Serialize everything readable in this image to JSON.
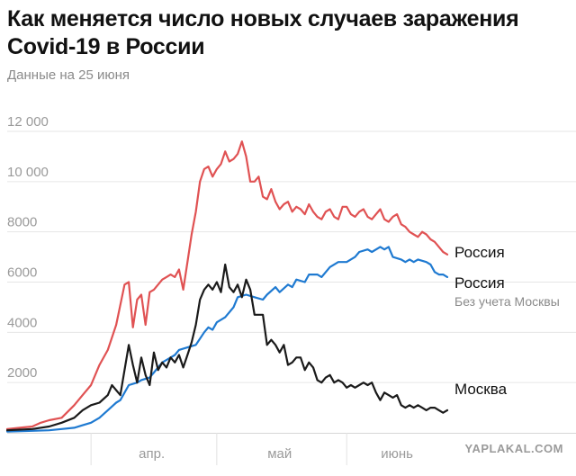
{
  "header": {
    "title": "Как меняется число новых случаев заражения Covid-19 в России",
    "subtitle": "Данные на 25 июня"
  },
  "watermark": "YAPLAKAL.COM",
  "colors": {
    "russia": "#e05253",
    "russia_ex_moscow": "#1f7ad1",
    "moscow": "#1a1a1a",
    "grid": "#e6e6e6",
    "axis_text": "#9a9a9a"
  },
  "chart_data": {
    "type": "line",
    "title": "Как меняется число новых случаев заражения Covid-19 в России",
    "subtitle": "Данные на 25 июня",
    "x_start": "2020-03-12",
    "x_end": "2020-06-25",
    "ylim": [
      0,
      12000
    ],
    "yticks": [
      {
        "value": 2000,
        "label": "2000"
      },
      {
        "value": 4000,
        "label": "4000"
      },
      {
        "value": 6000,
        "label": "6000"
      },
      {
        "value": 8000,
        "label": "8000"
      },
      {
        "value": 10000,
        "label": "10 000"
      },
      {
        "value": 12000,
        "label": "12 000"
      }
    ],
    "xticks": [
      {
        "label": "апр.",
        "start": "2020-04-01",
        "end": "2020-04-30"
      },
      {
        "label": "май",
        "start": "2020-05-01",
        "end": "2020-05-31"
      },
      {
        "label": "июнь",
        "start": "2020-06-01",
        "end": "2020-06-25"
      }
    ],
    "grid": true,
    "series": [
      {
        "name": "Россия",
        "label": "Россия",
        "sublabel": "",
        "color": "#e05253",
        "points": [
          [
            "2020-03-12",
            150
          ],
          [
            "2020-03-15",
            200
          ],
          [
            "2020-03-18",
            250
          ],
          [
            "2020-03-20",
            400
          ],
          [
            "2020-03-22",
            500
          ],
          [
            "2020-03-25",
            600
          ],
          [
            "2020-03-28",
            1100
          ],
          [
            "2020-03-30",
            1500
          ],
          [
            "2020-04-01",
            1900
          ],
          [
            "2020-04-03",
            2700
          ],
          [
            "2020-04-05",
            3300
          ],
          [
            "2020-04-07",
            4300
          ],
          [
            "2020-04-09",
            5900
          ],
          [
            "2020-04-10",
            6000
          ],
          [
            "2020-04-11",
            4200
          ],
          [
            "2020-04-12",
            5300
          ],
          [
            "2020-04-13",
            5500
          ],
          [
            "2020-04-14",
            4300
          ],
          [
            "2020-04-15",
            5600
          ],
          [
            "2020-04-16",
            5700
          ],
          [
            "2020-04-18",
            6100
          ],
          [
            "2020-04-19",
            6200
          ],
          [
            "2020-04-20",
            6300
          ],
          [
            "2020-04-21",
            6200
          ],
          [
            "2020-04-22",
            6500
          ],
          [
            "2020-04-23",
            5700
          ],
          [
            "2020-04-24",
            6800
          ],
          [
            "2020-04-25",
            7900
          ],
          [
            "2020-04-26",
            8800
          ],
          [
            "2020-04-27",
            10000
          ],
          [
            "2020-04-28",
            10500
          ],
          [
            "2020-04-29",
            10600
          ],
          [
            "2020-04-30",
            10200
          ],
          [
            "2020-05-01",
            10500
          ],
          [
            "2020-05-02",
            10700
          ],
          [
            "2020-05-03",
            11200
          ],
          [
            "2020-05-04",
            10800
          ],
          [
            "2020-05-05",
            10900
          ],
          [
            "2020-05-06",
            11100
          ],
          [
            "2020-05-07",
            11600
          ],
          [
            "2020-05-08",
            11000
          ],
          [
            "2020-05-09",
            10000
          ],
          [
            "2020-05-10",
            10000
          ],
          [
            "2020-05-11",
            10200
          ],
          [
            "2020-05-12",
            9400
          ],
          [
            "2020-05-13",
            9300
          ],
          [
            "2020-05-14",
            9700
          ],
          [
            "2020-05-15",
            9200
          ],
          [
            "2020-05-16",
            8900
          ],
          [
            "2020-05-17",
            9100
          ],
          [
            "2020-05-18",
            9200
          ],
          [
            "2020-05-19",
            8800
          ],
          [
            "2020-05-20",
            9000
          ],
          [
            "2020-05-21",
            8900
          ],
          [
            "2020-05-22",
            8700
          ],
          [
            "2020-05-23",
            9100
          ],
          [
            "2020-05-24",
            8800
          ],
          [
            "2020-05-25",
            8600
          ],
          [
            "2020-05-26",
            8500
          ],
          [
            "2020-05-27",
            8800
          ],
          [
            "2020-05-28",
            8900
          ],
          [
            "2020-05-29",
            8600
          ],
          [
            "2020-05-30",
            8500
          ],
          [
            "2020-05-31",
            9000
          ],
          [
            "2020-06-01",
            9000
          ],
          [
            "2020-06-02",
            8700
          ],
          [
            "2020-06-03",
            8600
          ],
          [
            "2020-06-04",
            8800
          ],
          [
            "2020-06-05",
            8900
          ],
          [
            "2020-06-06",
            8600
          ],
          [
            "2020-06-07",
            8500
          ],
          [
            "2020-06-08",
            8700
          ],
          [
            "2020-06-09",
            8900
          ],
          [
            "2020-06-10",
            8500
          ],
          [
            "2020-06-11",
            8400
          ],
          [
            "2020-06-12",
            8600
          ],
          [
            "2020-06-13",
            8700
          ],
          [
            "2020-06-14",
            8300
          ],
          [
            "2020-06-15",
            8200
          ],
          [
            "2020-06-16",
            8000
          ],
          [
            "2020-06-17",
            7900
          ],
          [
            "2020-06-18",
            7800
          ],
          [
            "2020-06-19",
            8000
          ],
          [
            "2020-06-20",
            7900
          ],
          [
            "2020-06-21",
            7700
          ],
          [
            "2020-06-22",
            7600
          ],
          [
            "2020-06-23",
            7400
          ],
          [
            "2020-06-24",
            7200
          ],
          [
            "2020-06-25",
            7100
          ]
        ]
      },
      {
        "name": "Россия",
        "label": "Россия",
        "sublabel": "Без учета Москвы",
        "color": "#1f7ad1",
        "points": [
          [
            "2020-03-12",
            50
          ],
          [
            "2020-03-18",
            80
          ],
          [
            "2020-03-22",
            100
          ],
          [
            "2020-03-25",
            150
          ],
          [
            "2020-03-28",
            200
          ],
          [
            "2020-03-30",
            300
          ],
          [
            "2020-04-01",
            400
          ],
          [
            "2020-04-03",
            600
          ],
          [
            "2020-04-05",
            900
          ],
          [
            "2020-04-07",
            1200
          ],
          [
            "2020-04-08",
            1300
          ],
          [
            "2020-04-10",
            1900
          ],
          [
            "2020-04-12",
            2000
          ],
          [
            "2020-04-13",
            2100
          ],
          [
            "2020-04-15",
            2200
          ],
          [
            "2020-04-16",
            2400
          ],
          [
            "2020-04-18",
            2800
          ],
          [
            "2020-04-20",
            3000
          ],
          [
            "2020-04-21",
            3100
          ],
          [
            "2020-04-22",
            3300
          ],
          [
            "2020-04-24",
            3400
          ],
          [
            "2020-04-26",
            3500
          ],
          [
            "2020-04-28",
            4000
          ],
          [
            "2020-04-29",
            4200
          ],
          [
            "2020-04-30",
            4100
          ],
          [
            "2020-05-01",
            4400
          ],
          [
            "2020-05-03",
            4600
          ],
          [
            "2020-05-05",
            5000
          ],
          [
            "2020-05-06",
            5400
          ],
          [
            "2020-05-08",
            5500
          ],
          [
            "2020-05-10",
            5400
          ],
          [
            "2020-05-12",
            5300
          ],
          [
            "2020-05-13",
            5500
          ],
          [
            "2020-05-15",
            5800
          ],
          [
            "2020-05-16",
            5600
          ],
          [
            "2020-05-18",
            5900
          ],
          [
            "2020-05-19",
            5800
          ],
          [
            "2020-05-20",
            6100
          ],
          [
            "2020-05-22",
            6000
          ],
          [
            "2020-05-23",
            6300
          ],
          [
            "2020-05-25",
            6300
          ],
          [
            "2020-05-26",
            6200
          ],
          [
            "2020-05-28",
            6600
          ],
          [
            "2020-05-30",
            6800
          ],
          [
            "2020-06-01",
            6800
          ],
          [
            "2020-06-03",
            7000
          ],
          [
            "2020-06-04",
            7200
          ],
          [
            "2020-06-06",
            7300
          ],
          [
            "2020-06-07",
            7200
          ],
          [
            "2020-06-09",
            7400
          ],
          [
            "2020-06-10",
            7300
          ],
          [
            "2020-06-11",
            7400
          ],
          [
            "2020-06-12",
            7000
          ],
          [
            "2020-06-14",
            6900
          ],
          [
            "2020-06-15",
            6800
          ],
          [
            "2020-06-16",
            6900
          ],
          [
            "2020-06-17",
            6800
          ],
          [
            "2020-06-18",
            6900
          ],
          [
            "2020-06-20",
            6800
          ],
          [
            "2020-06-21",
            6700
          ],
          [
            "2020-06-22",
            6400
          ],
          [
            "2020-06-23",
            6300
          ],
          [
            "2020-06-24",
            6300
          ],
          [
            "2020-06-25",
            6200
          ]
        ]
      },
      {
        "name": "Москва",
        "label": "Москва",
        "sublabel": "",
        "color": "#1a1a1a",
        "points": [
          [
            "2020-03-12",
            100
          ],
          [
            "2020-03-18",
            150
          ],
          [
            "2020-03-22",
            250
          ],
          [
            "2020-03-25",
            400
          ],
          [
            "2020-03-28",
            600
          ],
          [
            "2020-03-30",
            900
          ],
          [
            "2020-04-01",
            1100
          ],
          [
            "2020-04-03",
            1200
          ],
          [
            "2020-04-05",
            1500
          ],
          [
            "2020-04-06",
            1900
          ],
          [
            "2020-04-08",
            1500
          ],
          [
            "2020-04-10",
            3500
          ],
          [
            "2020-04-11",
            2700
          ],
          [
            "2020-04-12",
            2000
          ],
          [
            "2020-04-13",
            3000
          ],
          [
            "2020-04-14",
            2300
          ],
          [
            "2020-04-15",
            1900
          ],
          [
            "2020-04-16",
            3200
          ],
          [
            "2020-04-17",
            2500
          ],
          [
            "2020-04-18",
            2800
          ],
          [
            "2020-04-19",
            2600
          ],
          [
            "2020-04-20",
            3000
          ],
          [
            "2020-04-21",
            2800
          ],
          [
            "2020-04-22",
            3100
          ],
          [
            "2020-04-23",
            2600
          ],
          [
            "2020-04-24",
            3100
          ],
          [
            "2020-04-25",
            3600
          ],
          [
            "2020-04-26",
            4300
          ],
          [
            "2020-04-27",
            5300
          ],
          [
            "2020-04-28",
            5700
          ],
          [
            "2020-04-29",
            5900
          ],
          [
            "2020-04-30",
            5700
          ],
          [
            "2020-05-01",
            6000
          ],
          [
            "2020-05-02",
            5600
          ],
          [
            "2020-05-03",
            6700
          ],
          [
            "2020-05-04",
            5800
          ],
          [
            "2020-05-05",
            5600
          ],
          [
            "2020-05-06",
            5900
          ],
          [
            "2020-05-07",
            5400
          ],
          [
            "2020-05-08",
            6100
          ],
          [
            "2020-05-09",
            5700
          ],
          [
            "2020-05-10",
            4700
          ],
          [
            "2020-05-11",
            4700
          ],
          [
            "2020-05-12",
            4700
          ],
          [
            "2020-05-13",
            3500
          ],
          [
            "2020-05-14",
            3700
          ],
          [
            "2020-05-15",
            3500
          ],
          [
            "2020-05-16",
            3200
          ],
          [
            "2020-05-17",
            3500
          ],
          [
            "2020-05-18",
            2700
          ],
          [
            "2020-05-19",
            2800
          ],
          [
            "2020-05-20",
            3000
          ],
          [
            "2020-05-21",
            3000
          ],
          [
            "2020-05-22",
            2500
          ],
          [
            "2020-05-23",
            2800
          ],
          [
            "2020-05-24",
            2600
          ],
          [
            "2020-05-25",
            2100
          ],
          [
            "2020-05-26",
            2000
          ],
          [
            "2020-05-27",
            2200
          ],
          [
            "2020-05-28",
            2300
          ],
          [
            "2020-05-29",
            2000
          ],
          [
            "2020-05-30",
            2100
          ],
          [
            "2020-05-31",
            2000
          ],
          [
            "2020-06-01",
            1800
          ],
          [
            "2020-06-02",
            1900
          ],
          [
            "2020-06-03",
            1800
          ],
          [
            "2020-06-04",
            1900
          ],
          [
            "2020-06-05",
            2000
          ],
          [
            "2020-06-06",
            1900
          ],
          [
            "2020-06-07",
            2000
          ],
          [
            "2020-06-08",
            1600
          ],
          [
            "2020-06-09",
            1300
          ],
          [
            "2020-06-10",
            1600
          ],
          [
            "2020-06-11",
            1500
          ],
          [
            "2020-06-12",
            1400
          ],
          [
            "2020-06-13",
            1500
          ],
          [
            "2020-06-14",
            1100
          ],
          [
            "2020-06-15",
            1000
          ],
          [
            "2020-06-16",
            1100
          ],
          [
            "2020-06-17",
            1000
          ],
          [
            "2020-06-18",
            1100
          ],
          [
            "2020-06-19",
            1000
          ],
          [
            "2020-06-20",
            900
          ],
          [
            "2020-06-21",
            1000
          ],
          [
            "2020-06-22",
            1000
          ],
          [
            "2020-06-23",
            900
          ],
          [
            "2020-06-24",
            800
          ],
          [
            "2020-06-25",
            900
          ]
        ]
      }
    ]
  }
}
